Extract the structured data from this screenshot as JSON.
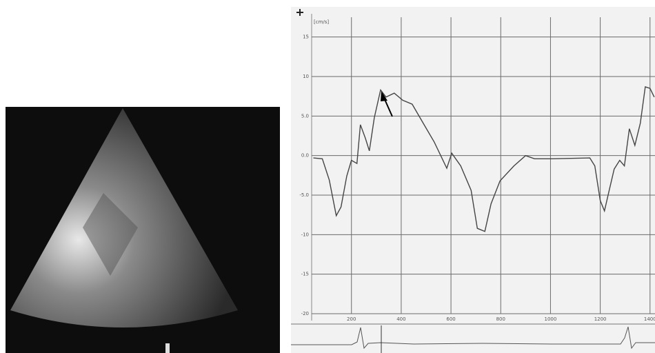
{
  "chart_data": {
    "type": "line",
    "y_label": "[cm/s]",
    "x": [
      47,
      83,
      111,
      139,
      158,
      181,
      200,
      222,
      236,
      256,
      272,
      292,
      317,
      339,
      372,
      406,
      444,
      492,
      533,
      583,
      603,
      639,
      681,
      706,
      736,
      761,
      797,
      853,
      900,
      936,
      1006,
      1158,
      1178,
      1200,
      1217,
      1233,
      1256,
      1278,
      1297,
      1317,
      1339,
      1361,
      1381,
      1400,
      1417
    ],
    "series": [
      {
        "color": "#444444",
        "values": [
          -0.3,
          -0.4,
          -3.1,
          -7.6,
          -6.5,
          -2.6,
          -0.6,
          -1.0,
          3.9,
          2.2,
          0.6,
          4.8,
          8.3,
          7.4,
          7.9,
          7.0,
          6.5,
          3.9,
          1.7,
          -1.6,
          0.3,
          -1.3,
          -4.4,
          -9.2,
          -9.6,
          -6.1,
          -3.2,
          -1.3,
          0.0,
          -0.4,
          -0.4,
          -0.3,
          -1.3,
          -5.7,
          -7.0,
          -4.8,
          -1.7,
          -0.6,
          -1.3,
          3.4,
          1.3,
          4.1,
          8.7,
          8.5,
          7.4
        ]
      }
    ],
    "xlim": [
      40,
      1420
    ],
    "ylim": [
      -20,
      17.5
    ],
    "xticks": [
      200,
      400,
      600,
      800,
      1000,
      1200,
      1400
    ],
    "yticks": [
      15,
      10,
      {
        "value": 5,
        "label": "5.0"
      },
      {
        "value": 0,
        "label": "0.0"
      },
      {
        "value": -5,
        "label": "-5.0"
      },
      -10,
      -15,
      -20
    ],
    "grid": true
  }
}
